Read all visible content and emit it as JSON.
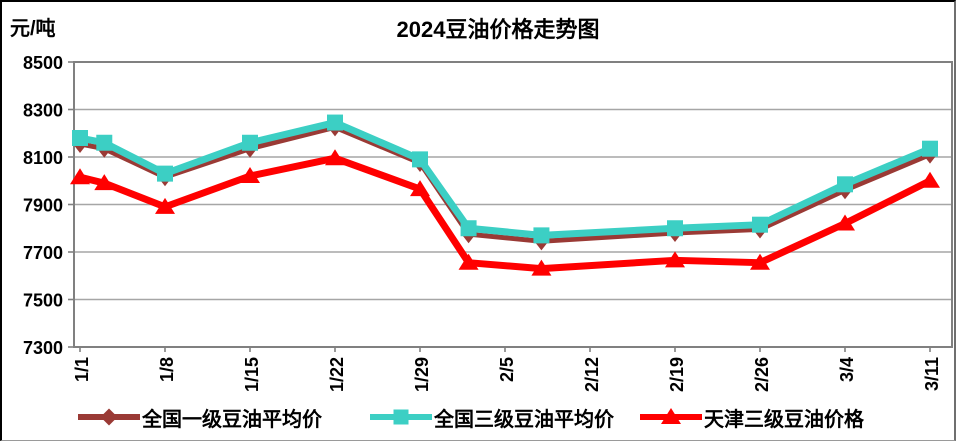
{
  "header": {
    "unit_label": "元/吨",
    "title": "2024豆油价格走势图"
  },
  "chart_data": {
    "type": "line",
    "title": "2024豆油价格走势图",
    "ylabel": "元/吨",
    "xlabel": "",
    "ylim": [
      7300,
      8500
    ],
    "ytick_step": 200,
    "yticks": [
      8500,
      8300,
      8100,
      7900,
      7700,
      7500,
      7300
    ],
    "xtick_labels": [
      "1/1",
      "1/8",
      "1/15",
      "1/22",
      "1/29",
      "2/5",
      "2/12",
      "2/19",
      "2/26",
      "3/4",
      "3/11"
    ],
    "x_dates": [
      "1/1",
      "1/3",
      "1/8",
      "1/15",
      "1/22",
      "1/29",
      "2/2",
      "2/8",
      "2/19",
      "2/26",
      "3/4",
      "3/11"
    ],
    "x_day_offsets": [
      0,
      2,
      7,
      14,
      21,
      28,
      32,
      38,
      49,
      56,
      63,
      70
    ],
    "x_axis_span_days": 70,
    "grid": "horizontal",
    "gridline_color": "#A6A6A6",
    "frame_color": "#808080",
    "legend_position": "bottom",
    "series": [
      {
        "name": "全国一级豆油平均价",
        "color": "#9A3A35",
        "marker": "diamond",
        "line_width": 5,
        "values": [
          8155,
          8135,
          8015,
          8135,
          8225,
          8075,
          7775,
          7745,
          7780,
          7795,
          7960,
          8110
        ]
      },
      {
        "name": "全国三级豆油平均价",
        "color": "#3CCFC4",
        "marker": "square",
        "line_width": 7,
        "values": [
          8180,
          8160,
          8030,
          8160,
          8245,
          8090,
          7800,
          7770,
          7800,
          7815,
          7985,
          8135
        ]
      },
      {
        "name": "天津三级豆油价格",
        "color": "#FF0000",
        "marker": "triangle",
        "line_width": 7,
        "values": [
          8015,
          7990,
          7890,
          8020,
          8095,
          7965,
          7655,
          7630,
          7665,
          7655,
          7820,
          8000
        ]
      }
    ]
  }
}
